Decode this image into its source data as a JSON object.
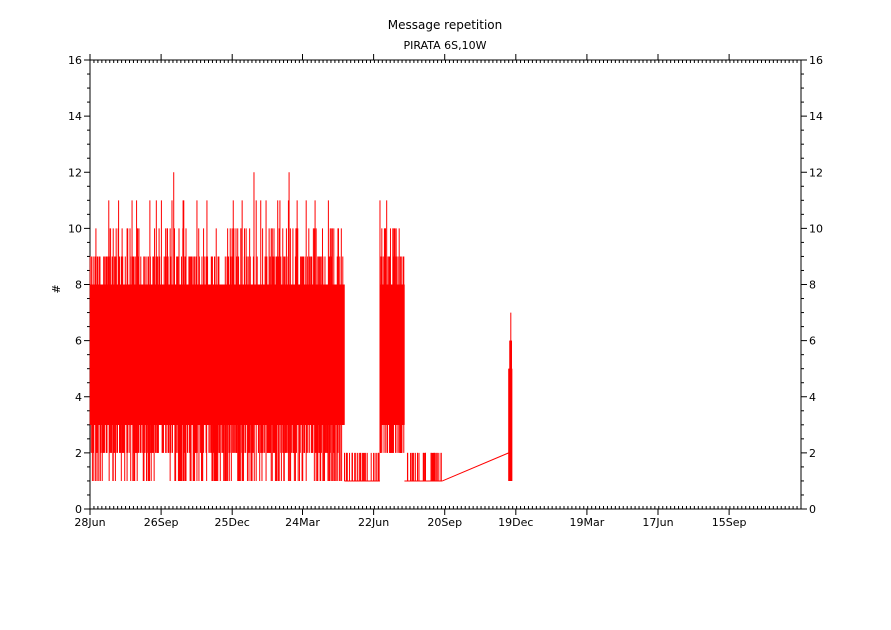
{
  "chart_data": {
    "type": "line",
    "title": "Message repetition",
    "subtitle": "PIRATA 6S,10W",
    "xlabel": "",
    "ylabel": "#",
    "ylim": [
      0,
      16
    ],
    "yticks": [
      0,
      2,
      4,
      6,
      8,
      10,
      12,
      14,
      16
    ],
    "y_tick_labels": [
      "0",
      "2",
      "4",
      "6",
      "8",
      "10",
      "12",
      "14",
      "16"
    ],
    "x_axis": "date",
    "xlim": [
      "28Jun",
      "End"
    ],
    "x_tick_labels": [
      "28Jun",
      "26Sep",
      "25Dec",
      "24Mar",
      "22Jun",
      "20Sep",
      "19Dec",
      "19Mar",
      "17Jun",
      "15Sep"
    ],
    "x_tick_days": [
      0,
      90,
      180,
      269,
      359,
      449,
      539,
      629,
      719,
      809
    ],
    "x_max_day": 900,
    "grid": false,
    "right_axis_labels": true,
    "series": [
      {
        "color": "#ff0000",
        "segments": [
          {
            "day_start": 0,
            "day_end": 322,
            "kind": "dense",
            "band_low": 3,
            "band_high": 8,
            "spike_max": 12,
            "spike_min": 1
          },
          {
            "day_start": 322,
            "day_end": 367,
            "kind": "sparse",
            "base": 1,
            "spike_max": 2
          },
          {
            "day_start": 367,
            "day_end": 398,
            "kind": "dense",
            "band_low": 3,
            "band_high": 8,
            "spike_max": 11,
            "spike_min": 2
          },
          {
            "day_start": 398,
            "day_end": 446,
            "kind": "sparse",
            "base": 1,
            "spike_max": 2
          },
          {
            "day_start": 446,
            "day_end": 530,
            "kind": "linear",
            "y_start": 1,
            "y_end": 2
          },
          {
            "day_start": 530,
            "day_end": 534,
            "kind": "burst",
            "base": 1,
            "spike_max": 7
          }
        ]
      }
    ]
  }
}
